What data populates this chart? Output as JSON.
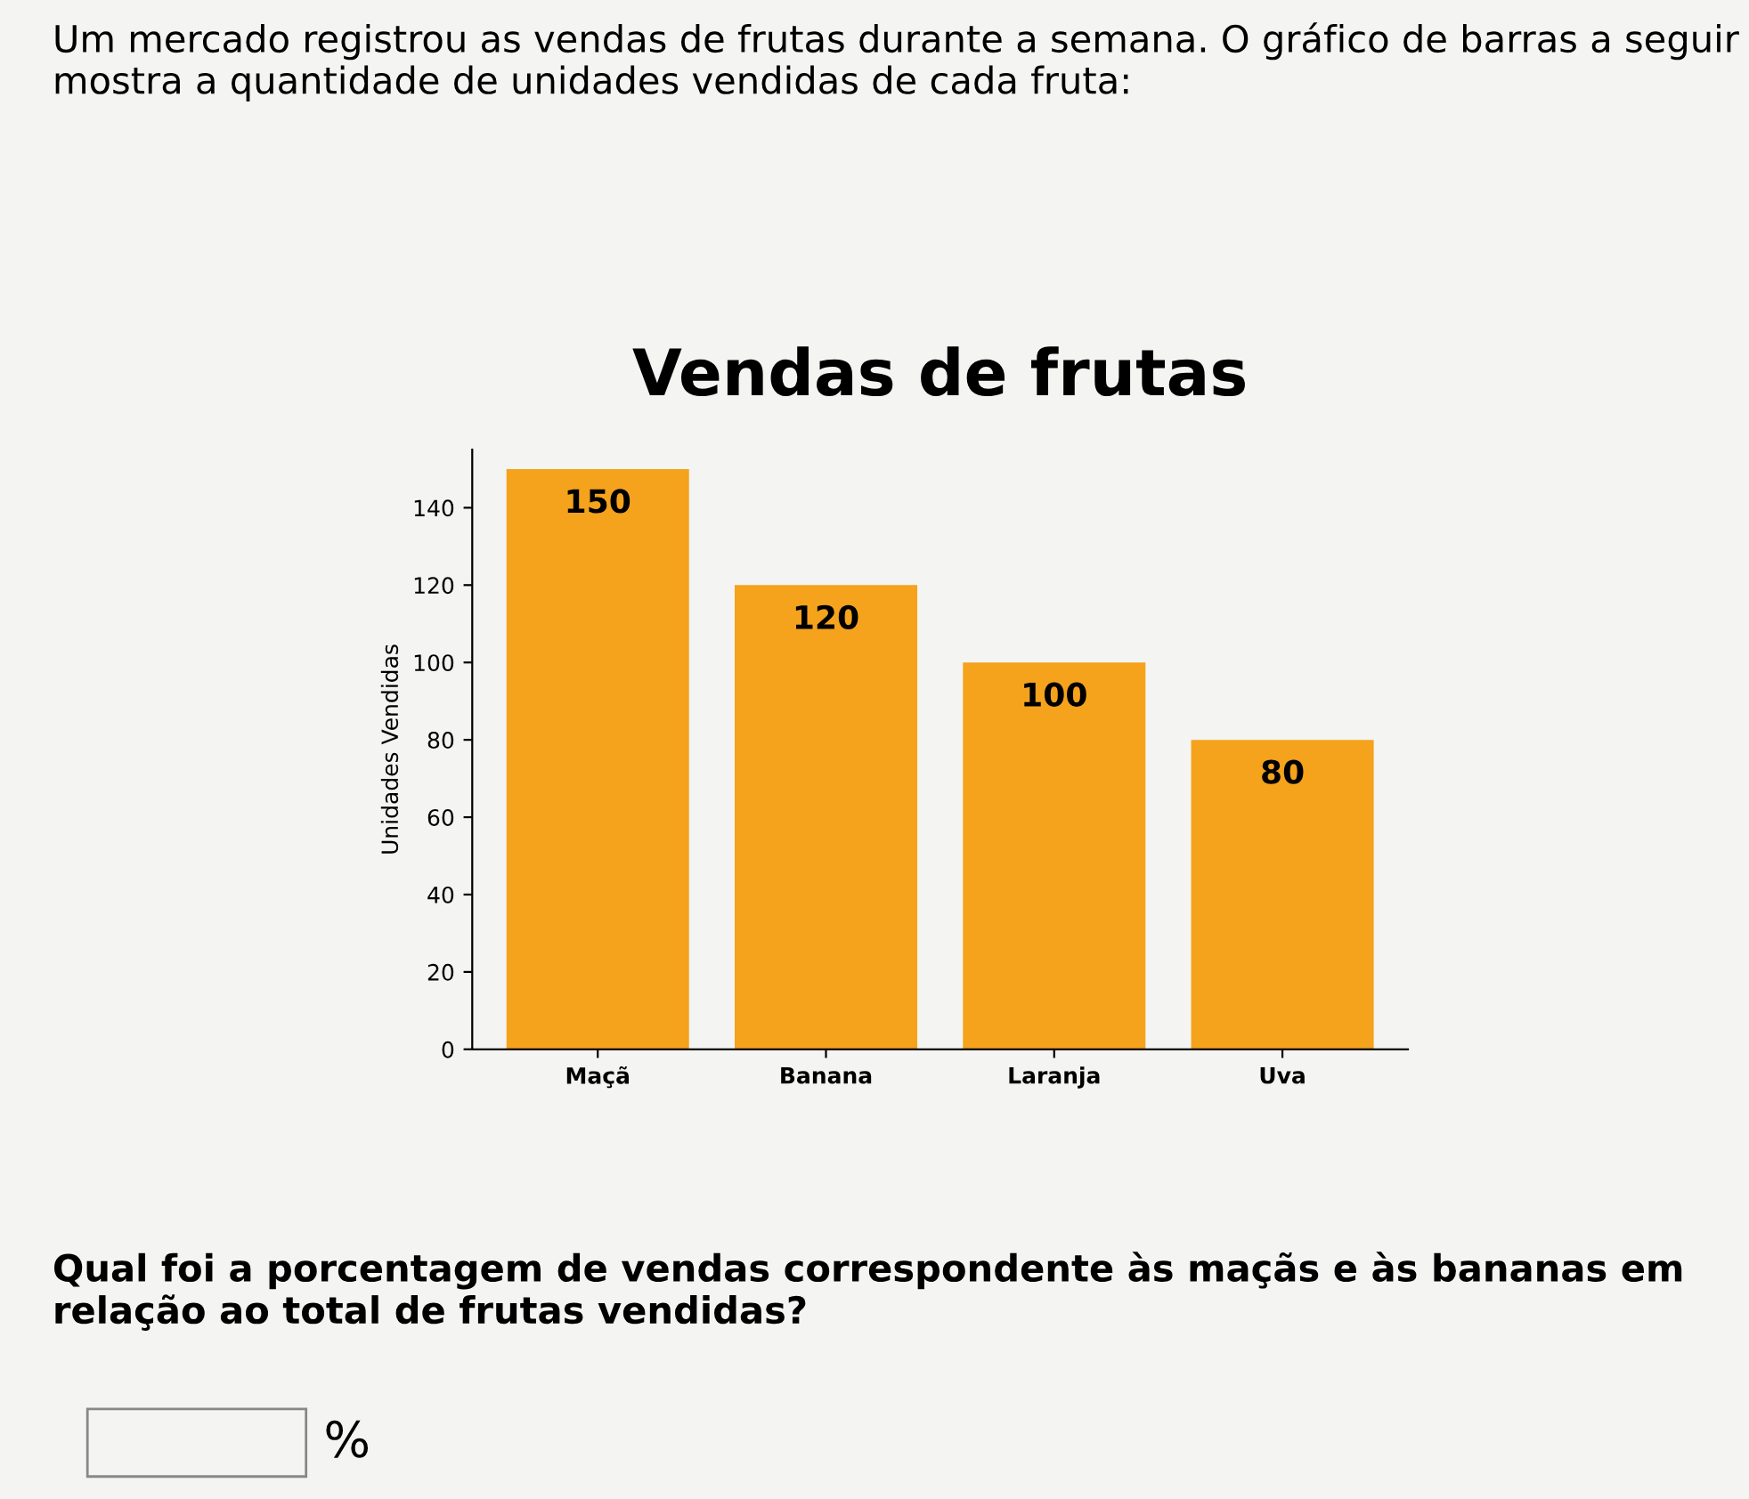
{
  "chart_data": {
    "type": "bar",
    "title": "Vendas de frutas",
    "ylabel": "Unidades Vendidas",
    "categories": [
      "Maçã",
      "Banana",
      "Laranja",
      "Uva"
    ],
    "values": [
      150,
      120,
      100,
      80
    ],
    "color": "#f5a21c",
    "data_labels": true,
    "ylim": [
      0,
      155
    ],
    "yticks": [
      0,
      20,
      40,
      60,
      80,
      100,
      120,
      140
    ],
    "grid": false,
    "annotations": [
      "Um mercado registrou as vendas de frutas durante a semana. O gráfico de barras a seguir mostra a quantidade de unidades vendidas de cada fruta:",
      "Qual foi a porcentagem de vendas correspondente às maçãs e às bananas em relação ao total de frutas vendidas?",
      "%"
    ]
  }
}
